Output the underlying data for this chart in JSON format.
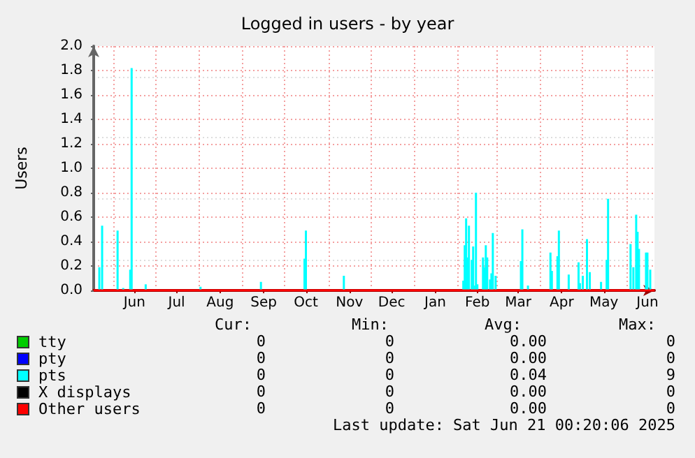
{
  "chart_data": {
    "type": "bar",
    "title": "Logged in users - by year",
    "ylabel": "Users",
    "xlim": [
      "2024-05-18",
      "2025-06-21"
    ],
    "xticks": [
      {
        "value": "2024-06-01",
        "label": null
      },
      {
        "value": "2024-07-01",
        "label": null
      },
      {
        "value": "2024-08-01",
        "label": null
      },
      {
        "value": "2024-09-01",
        "label": null
      },
      {
        "value": "2024-10-01",
        "label": null
      },
      {
        "value": "2024-11-01",
        "label": null
      },
      {
        "value": "2024-12-01",
        "label": null
      },
      {
        "value": "2025-01-01",
        "label": null
      },
      {
        "value": "2025-02-01",
        "label": null
      },
      {
        "value": "2025-03-01",
        "label": null
      },
      {
        "value": "2025-04-01",
        "label": null
      },
      {
        "value": "2025-05-01",
        "label": null
      },
      {
        "value": "2025-06-01",
        "label": null
      },
      {
        "value": "2024-06-16",
        "label": "Jun"
      },
      {
        "value": "2024-07-16",
        "label": "Jul"
      },
      {
        "value": "2024-08-16",
        "label": "Aug"
      },
      {
        "value": "2024-09-16",
        "label": "Sep"
      },
      {
        "value": "2024-10-16",
        "label": "Oct"
      },
      {
        "value": "2024-11-16",
        "label": "Nov"
      },
      {
        "value": "2024-12-16",
        "label": "Dec"
      },
      {
        "value": "2025-01-16",
        "label": "Jan"
      },
      {
        "value": "2025-02-15",
        "label": "Feb"
      },
      {
        "value": "2025-03-16",
        "label": "Mar"
      },
      {
        "value": "2025-04-16",
        "label": "Apr"
      },
      {
        "value": "2025-05-16",
        "label": "May"
      },
      {
        "value": "2025-06-16",
        "label": "Jun"
      }
    ],
    "ylim": [
      0,
      2.0
    ],
    "yticks": [
      {
        "value": 0,
        "label": "0.0"
      },
      {
        "value": 0.2,
        "label": "0.2"
      },
      {
        "value": 0.4,
        "label": "0.4"
      },
      {
        "value": 0.6,
        "label": "0.6"
      },
      {
        "value": 0.8,
        "label": "0.8"
      },
      {
        "value": 1.0,
        "label": "1.0"
      },
      {
        "value": 1.2,
        "label": "1.2"
      },
      {
        "value": 1.4,
        "label": "1.4"
      },
      {
        "value": 1.6,
        "label": "1.6"
      },
      {
        "value": 1.8,
        "label": "1.8"
      },
      {
        "value": 2.0,
        "label": "2.0"
      }
    ],
    "grid": true,
    "legend": "bottom",
    "series": [
      {
        "name": "tty",
        "type": "line",
        "color": "#00cc00"
      },
      {
        "name": "pty",
        "type": "line",
        "color": "#0000ff"
      },
      {
        "name": "pts",
        "color": "#00ffff",
        "x": [
          "2024-05-22",
          "2024-05-24",
          "2024-06-04",
          "2024-06-08",
          "2024-06-13",
          "2024-06-14",
          "2024-06-24",
          "2024-08-02",
          "2024-08-20",
          "2024-09-14",
          "2024-10-15",
          "2024-10-16",
          "2024-11-12",
          "2025-02-05",
          "2025-02-06",
          "2025-02-07",
          "2025-02-08",
          "2025-02-09",
          "2025-02-11",
          "2025-02-12",
          "2025-02-13",
          "2025-02-14",
          "2025-02-15",
          "2025-02-19",
          "2025-02-20",
          "2025-02-21",
          "2025-02-22",
          "2025-02-24",
          "2025-02-25",
          "2025-02-26",
          "2025-02-28",
          "2025-03-18",
          "2025-03-19",
          "2025-03-23",
          "2025-04-08",
          "2025-04-09",
          "2025-04-13",
          "2025-04-14",
          "2025-04-21",
          "2025-04-28",
          "2025-04-29",
          "2025-05-01",
          "2025-05-04",
          "2025-05-06",
          "2025-05-14",
          "2025-05-18",
          "2025-05-19",
          "2025-06-04",
          "2025-06-06",
          "2025-06-08",
          "2025-06-09",
          "2025-06-10",
          "2025-06-15",
          "2025-06-16",
          "2025-06-18"
        ],
        "values": [
          0.19,
          0.53,
          0.49,
          0.02,
          0.17,
          1.82,
          0.05,
          0.03,
          null,
          0.07,
          0.26,
          0.49,
          0.12,
          0.08,
          0.37,
          0.59,
          0.27,
          0.53,
          0.25,
          0.36,
          0.04,
          0.8,
          0.05,
          0.27,
          0.19,
          0.37,
          0.27,
          0.09,
          0.14,
          0.47,
          0.12,
          0.24,
          0.5,
          0.04,
          0.31,
          0.16,
          0.28,
          0.49,
          0.13,
          0.23,
          0.06,
          0.12,
          0.42,
          0.15,
          0.07,
          0.25,
          0.75,
          0.38,
          0.19,
          0.62,
          0.48,
          0.34,
          0.31,
          0.31,
          0.17
        ]
      },
      {
        "name": "X displays",
        "type": "line",
        "color": "#000000"
      },
      {
        "name": "Other users",
        "type": "line",
        "color": "#ff0000",
        "x": [
          "2024-05-18",
          "2025-06-21"
        ],
        "values": [
          0,
          0
        ]
      }
    ],
    "annotations": [
      "Cur:",
      "Min:",
      "Avg:",
      "Max:",
      "0",
      "0",
      "0.00",
      "0",
      "0",
      "0",
      "0.00",
      "0",
      "0",
      "0",
      "0.04",
      "9",
      "0",
      "0",
      "0.00",
      "0",
      "0",
      "0",
      "0.00",
      "0",
      "Last update: Sat Jun 21 00:20:06 2025"
    ]
  }
}
